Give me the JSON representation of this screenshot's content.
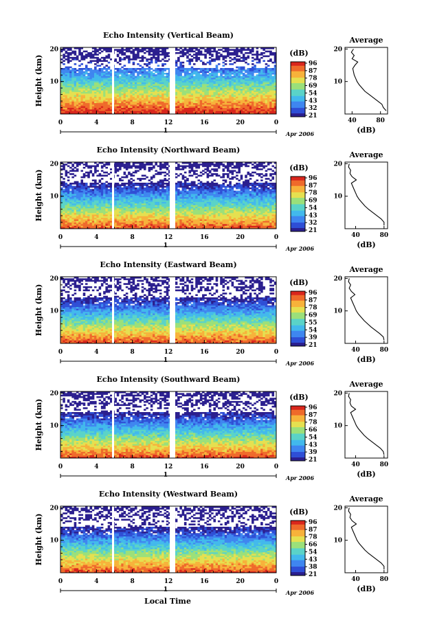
{
  "colors": {
    "scale": [
      "#2b1f8f",
      "#2f4fd6",
      "#3f86f0",
      "#42b9ec",
      "#5ad3c8",
      "#9be07a",
      "#e5e050",
      "#f7b23b",
      "#ef6a2b",
      "#d9261c"
    ]
  },
  "xaxis": {
    "ticks": [
      "0",
      "4",
      "8",
      "12",
      "16",
      "20",
      "0"
    ],
    "date": "1",
    "month_label": "Apr 2006",
    "label": "Local Time"
  },
  "yaxis": {
    "label": "Height (km)",
    "ticks": [
      "20",
      "10"
    ]
  },
  "colorbar": {
    "unit": "(dB)"
  },
  "profile": {
    "title": "Average",
    "xlabel": "(dB)",
    "yticks": [
      "20",
      "10"
    ]
  },
  "chart_data": [
    {
      "type": "heatmap",
      "title": "Echo Intensity (Vertical Beam)",
      "colorbar_ticks": [
        "96",
        "87",
        "78",
        "69",
        "54",
        "43",
        "32",
        "21"
      ],
      "profile": {
        "xticks": [
          "40",
          "80"
        ],
        "xlim": [
          30,
          90
        ],
        "heights": [
          1,
          2,
          3,
          4,
          5,
          6,
          7,
          8,
          9,
          10,
          11,
          12,
          13,
          14,
          15,
          16,
          17,
          18,
          19,
          20
        ],
        "values": [
          88,
          84,
          82,
          76,
          70,
          64,
          58,
          54,
          50,
          47,
          45,
          43,
          42,
          41,
          44,
          48,
          40,
          43,
          39,
          42
        ]
      }
    },
    {
      "type": "heatmap",
      "title": "Echo Intensity (Northward Beam)",
      "colorbar_ticks": [
        "96",
        "87",
        "78",
        "69",
        "54",
        "43",
        "32",
        "21"
      ],
      "profile": {
        "xticks": [
          "40",
          "80"
        ],
        "xlim": [
          25,
          85
        ],
        "heights": [
          1,
          2,
          3,
          4,
          5,
          6,
          7,
          8,
          9,
          10,
          11,
          12,
          13,
          14,
          15,
          16,
          17,
          18,
          19,
          20
        ],
        "values": [
          80,
          80,
          76,
          70,
          64,
          58,
          53,
          49,
          45,
          42,
          40,
          38,
          36,
          34,
          41,
          35,
          32,
          33,
          30,
          31
        ]
      }
    },
    {
      "type": "heatmap",
      "title": "Echo Intensity (Eastward Beam)",
      "colorbar_ticks": [
        "96",
        "87",
        "78",
        "69",
        "55",
        "54",
        "39",
        "21"
      ],
      "profile": {
        "xticks": [
          "40",
          "80"
        ],
        "xlim": [
          25,
          85
        ],
        "heights": [
          1,
          2,
          3,
          4,
          5,
          6,
          7,
          8,
          9,
          10,
          11,
          12,
          13,
          14,
          15,
          16,
          17,
          18,
          19,
          20
        ],
        "values": [
          80,
          79,
          74,
          68,
          62,
          57,
          52,
          48,
          44,
          41,
          39,
          37,
          35,
          33,
          39,
          34,
          31,
          33,
          30,
          31
        ]
      }
    },
    {
      "type": "heatmap",
      "title": "Echo Intensity (Southward Beam)",
      "colorbar_ticks": [
        "96",
        "87",
        "78",
        "66",
        "54",
        "43",
        "39",
        "21"
      ],
      "profile": {
        "xticks": [
          "40",
          "80"
        ],
        "xlim": [
          25,
          85
        ],
        "heights": [
          1,
          2,
          3,
          4,
          5,
          6,
          7,
          8,
          9,
          10,
          11,
          12,
          13,
          14,
          15,
          16,
          17,
          18,
          19,
          20
        ],
        "values": [
          80,
          79,
          75,
          69,
          63,
          57,
          52,
          48,
          44,
          41,
          39,
          37,
          35,
          33,
          40,
          34,
          32,
          33,
          30,
          31
        ]
      }
    },
    {
      "type": "heatmap",
      "title": "Echo Intensity (Westward Beam)",
      "colorbar_ticks": [
        "96",
        "87",
        "78",
        "66",
        "54",
        "43",
        "38",
        "21"
      ],
      "profile": {
        "xticks": [
          "40",
          "80"
        ],
        "xlim": [
          25,
          85
        ],
        "heights": [
          1,
          2,
          3,
          4,
          5,
          6,
          7,
          8,
          9,
          10,
          11,
          12,
          13,
          14,
          15,
          16,
          17,
          18,
          19,
          20
        ],
        "values": [
          80,
          80,
          76,
          70,
          64,
          58,
          53,
          49,
          45,
          42,
          40,
          38,
          36,
          34,
          41,
          35,
          32,
          33,
          30,
          31
        ]
      }
    }
  ]
}
